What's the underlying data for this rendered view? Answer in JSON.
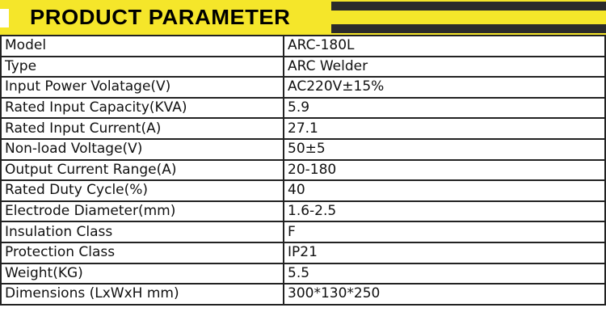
{
  "header": {
    "title": "PRODUCT PARAMETER",
    "accent": "#f5e62a",
    "stripe_color": "#2b2b2b"
  },
  "rows": [
    {
      "label": "Model",
      "value": "ARC-180L"
    },
    {
      "label": "Type",
      "value": "ARC Welder"
    },
    {
      "label": "Input Power Volatage(V)",
      "value": "AC220V±15%"
    },
    {
      "label": "Rated Input Capacity(KVA)",
      "value": "5.9"
    },
    {
      "label": "Rated Input Current(A)",
      "value": "27.1"
    },
    {
      "label": "Non-load Voltage(V)",
      "value": "50±5"
    },
    {
      "label": "Output Current Range(A)",
      "value": "20-180"
    },
    {
      "label": "Rated Duty Cycle(%)",
      "value": "40"
    },
    {
      "label": "Electrode Diameter(mm)",
      "value": "1.6-2.5"
    },
    {
      "label": "Insulation Class",
      "value": "F"
    },
    {
      "label": "Protection Class",
      "value": "IP21"
    },
    {
      "label": "Weight(KG)",
      "value": "5.5"
    },
    {
      "label": "Dimensions (LxWxH mm)",
      "value": "300*130*250"
    }
  ]
}
